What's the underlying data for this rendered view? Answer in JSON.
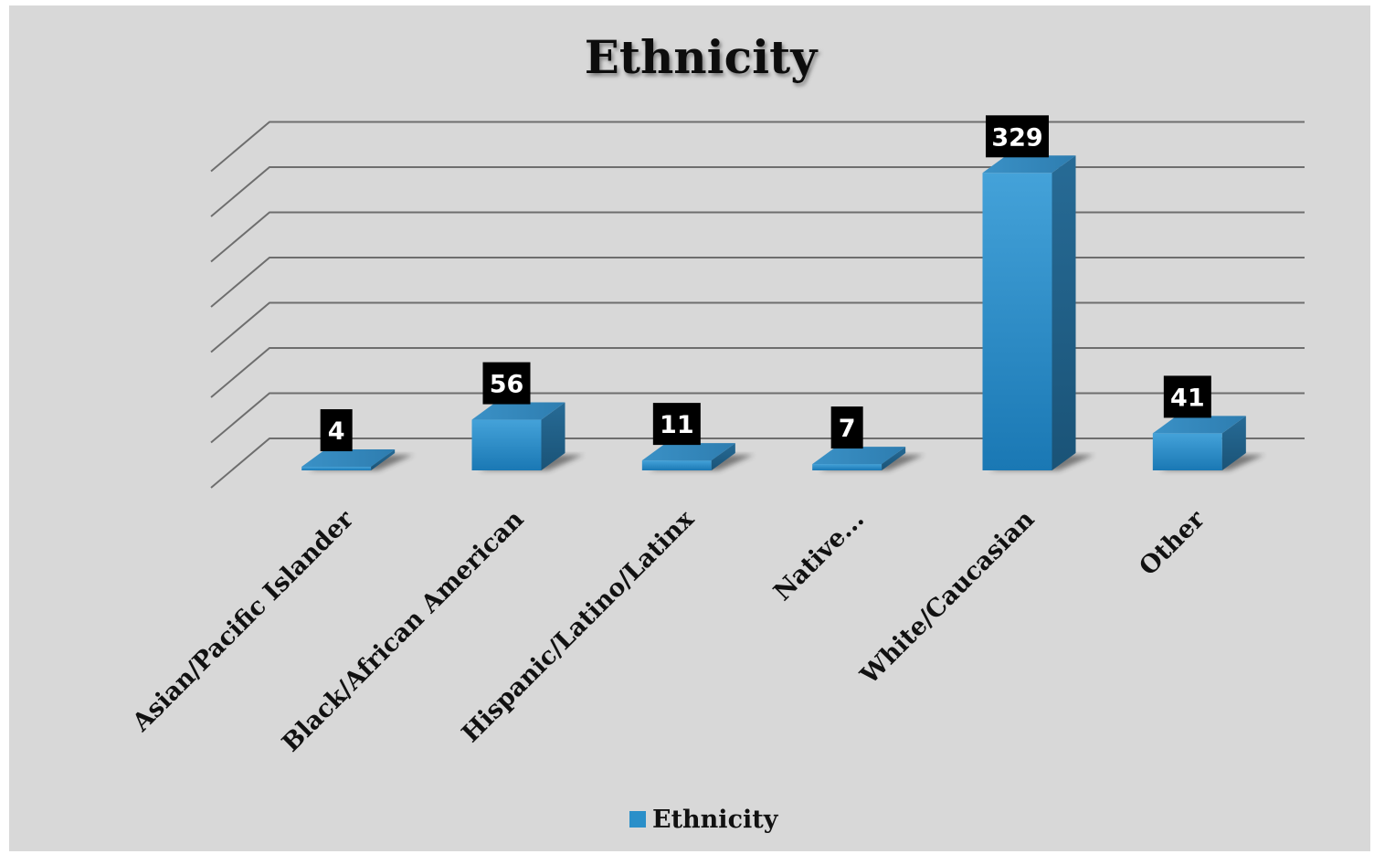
{
  "chart_data": {
    "type": "bar",
    "title": "Ethnicity",
    "categories": [
      "Asian/Pacific Islander",
      "Black/African American",
      "Hispanic/Latino/Latinx",
      "Native...",
      "White/Caucasian",
      "Other"
    ],
    "series": [
      {
        "name": "Ethnicity",
        "values": [
          4,
          56,
          11,
          7,
          329,
          41
        ],
        "color": "#2a8fc9"
      }
    ],
    "ylim": [
      0,
      350
    ],
    "grid": true,
    "legend": "bottom",
    "data_labels": true,
    "style": "3d-column"
  }
}
